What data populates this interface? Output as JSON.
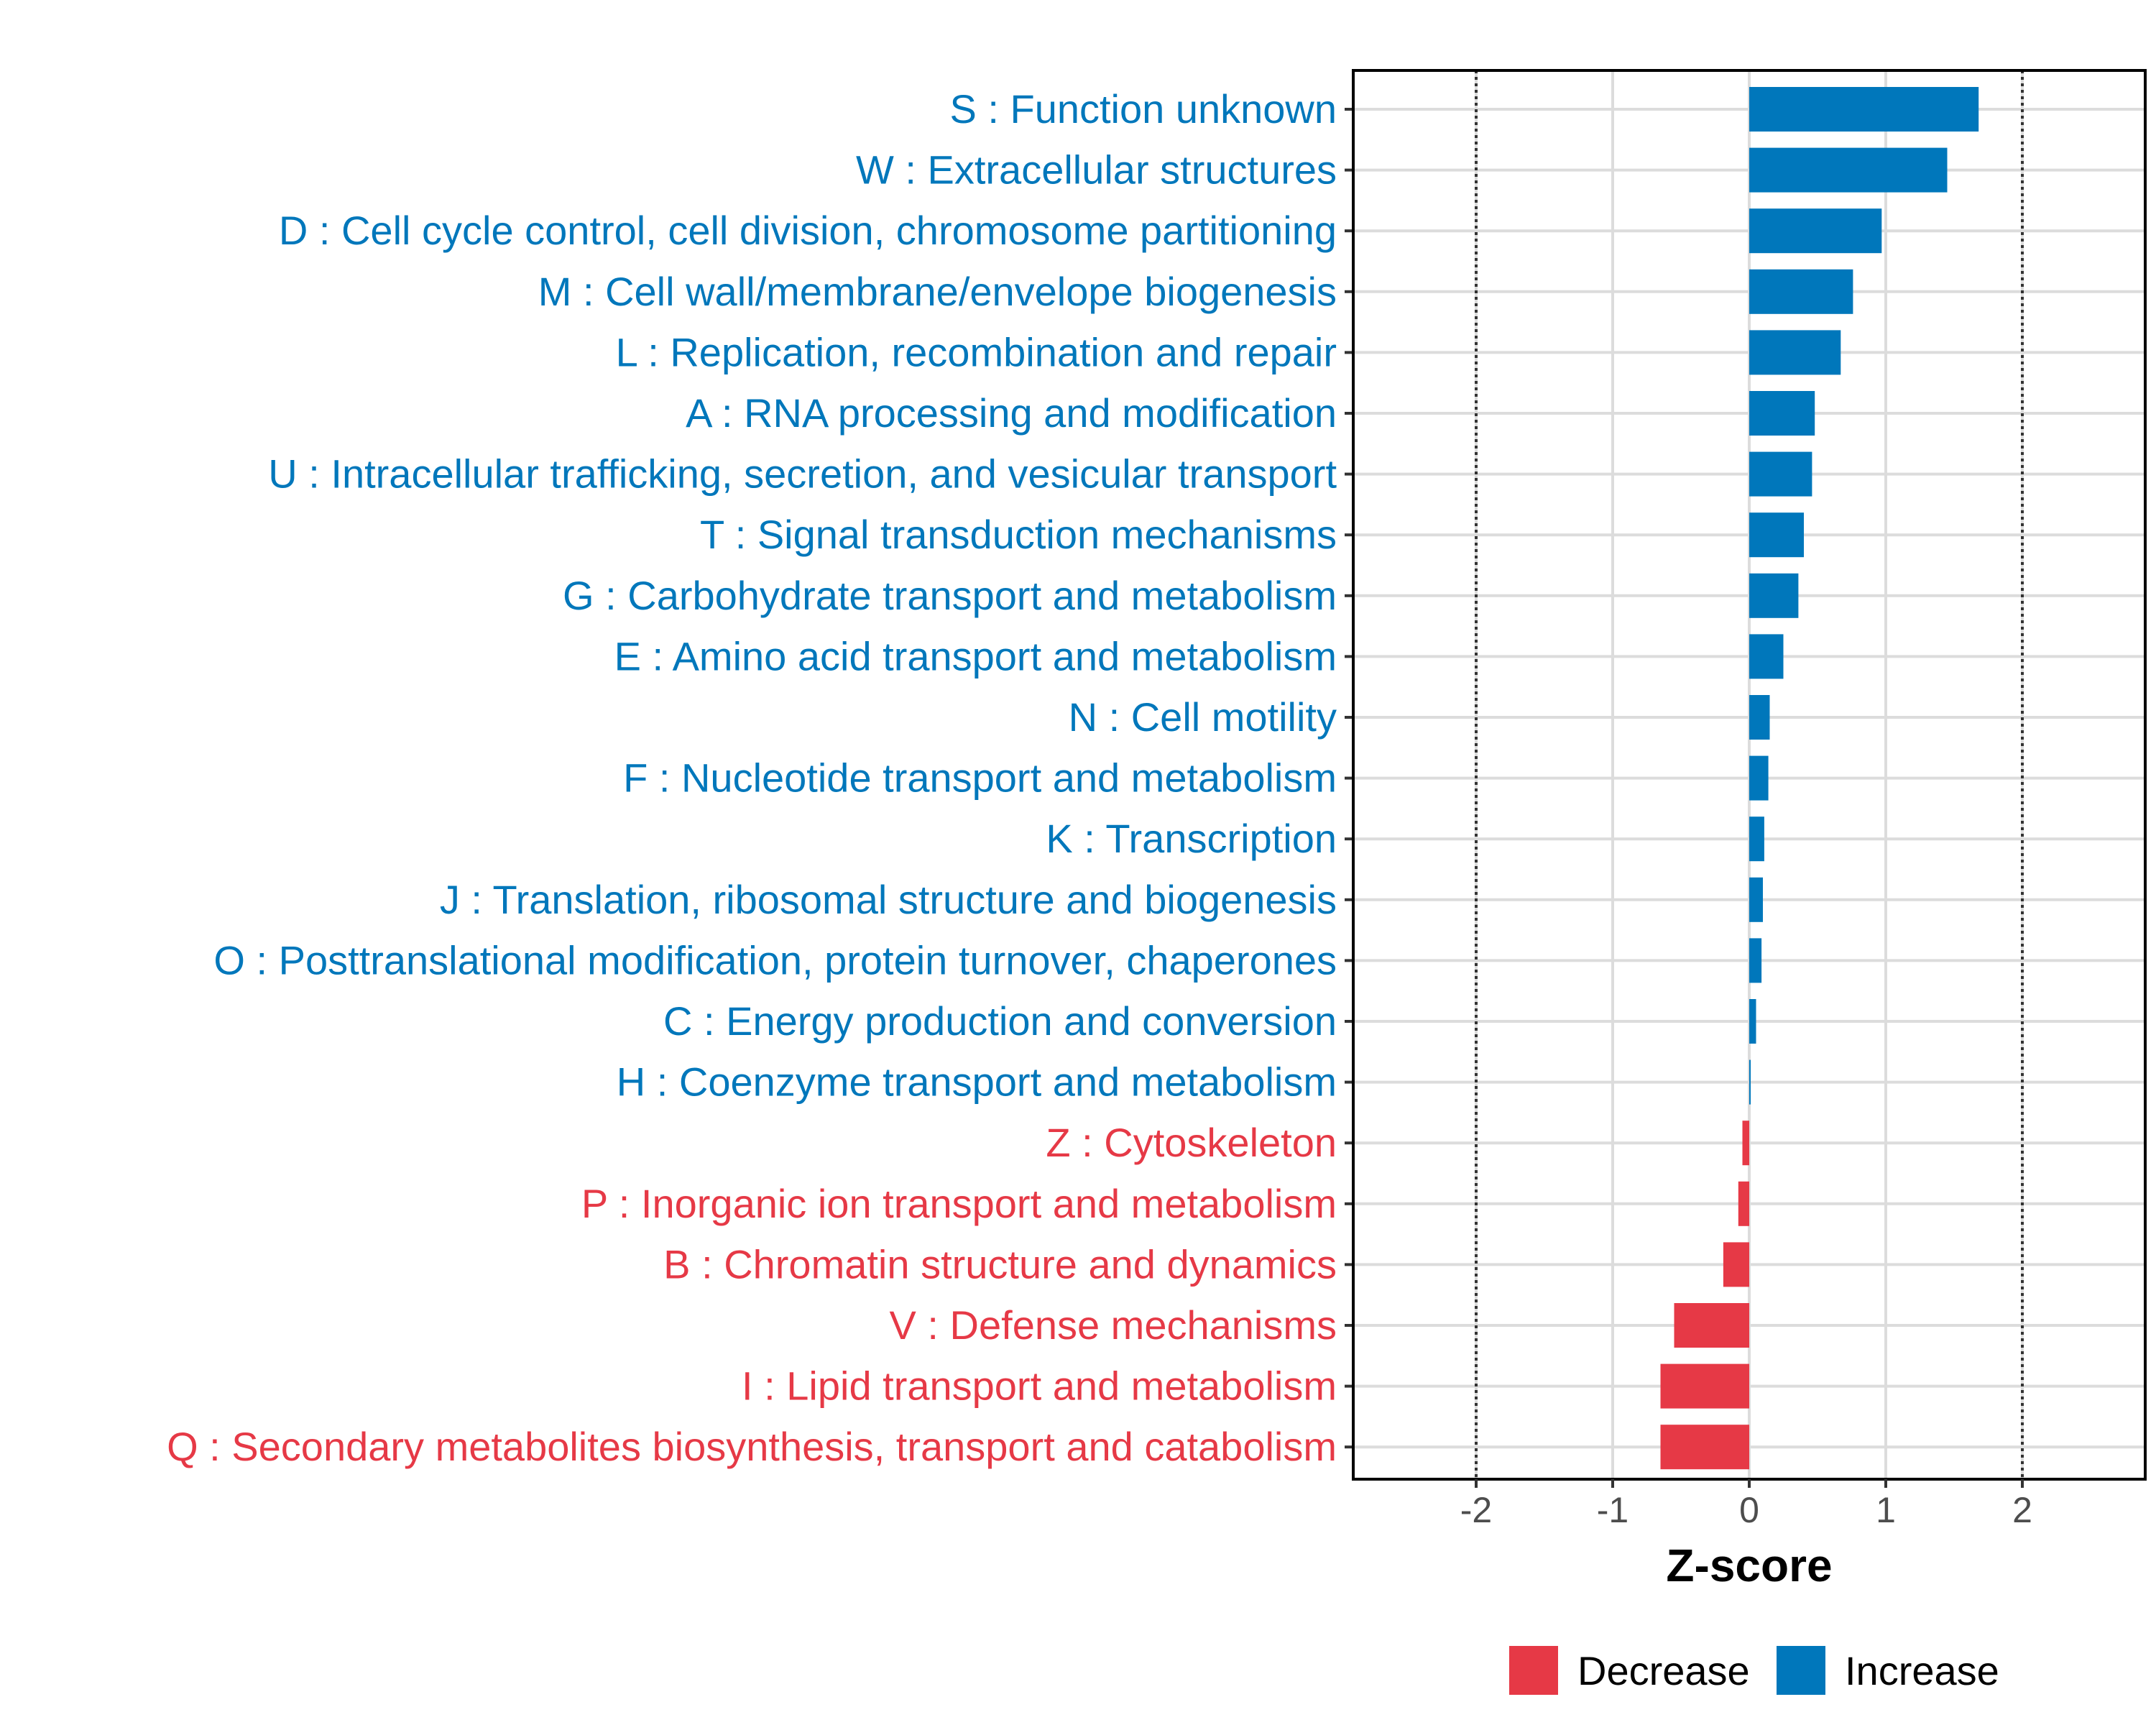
{
  "chart_data": {
    "type": "bar",
    "orientation": "horizontal",
    "xlabel": "Z-score",
    "xlim": [
      -2.9,
      2.9
    ],
    "xticks": [
      -2,
      -1,
      0,
      1,
      2
    ],
    "xtick_labels": [
      "-2",
      "-1",
      "0",
      "1",
      "2"
    ],
    "reference_lines": [
      -2,
      2
    ],
    "grid": true,
    "legend_position": "bottom",
    "colors": {
      "Increase": "#0077bb",
      "Decrease": "#e63946"
    },
    "legend": [
      {
        "label": "Decrease",
        "color": "#e63946"
      },
      {
        "label": "Increase",
        "color": "#0077bb"
      }
    ],
    "categories": [
      "S : Function unknown",
      "W : Extracellular structures",
      "D : Cell cycle control, cell division, chromosome partitioning",
      "M : Cell wall/membrane/envelope biogenesis",
      "L : Replication, recombination and repair",
      "A : RNA processing and modification",
      "U : Intracellular trafficking, secretion, and vesicular transport",
      "T : Signal transduction mechanisms",
      "G : Carbohydrate transport and metabolism",
      "E : Amino acid transport and metabolism",
      "N : Cell motility",
      "F : Nucleotide transport and metabolism",
      "K : Transcription",
      "J : Translation, ribosomal structure and biogenesis",
      "O : Posttranslational modification, protein turnover, chaperones",
      "C : Energy production and conversion",
      "H : Coenzyme transport and metabolism",
      "Z : Cytoskeleton",
      "P : Inorganic ion transport and metabolism",
      "B : Chromatin structure and dynamics",
      "V : Defense mechanisms",
      "I : Lipid transport and metabolism",
      "Q : Secondary metabolites biosynthesis, transport and catabolism"
    ],
    "values": [
      1.68,
      1.45,
      0.97,
      0.76,
      0.67,
      0.48,
      0.46,
      0.4,
      0.36,
      0.25,
      0.15,
      0.14,
      0.11,
      0.1,
      0.09,
      0.05,
      0.01,
      -0.05,
      -0.08,
      -0.19,
      -0.55,
      -0.65,
      -0.65
    ],
    "direction": [
      "Increase",
      "Increase",
      "Increase",
      "Increase",
      "Increase",
      "Increase",
      "Increase",
      "Increase",
      "Increase",
      "Increase",
      "Increase",
      "Increase",
      "Increase",
      "Increase",
      "Increase",
      "Increase",
      "Increase",
      "Decrease",
      "Decrease",
      "Decrease",
      "Decrease",
      "Decrease",
      "Decrease"
    ]
  }
}
